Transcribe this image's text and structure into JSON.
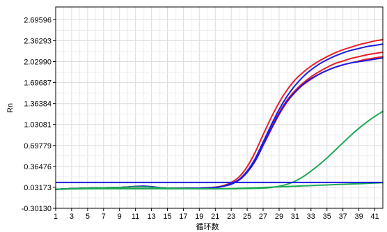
{
  "chart_data": {
    "type": "line",
    "title": "",
    "xlabel": "循环数",
    "ylabel": "Rn",
    "xlim": [
      1,
      42
    ],
    "ylim": [
      -0.3013,
      2.9
    ],
    "grid": true,
    "legend": "none",
    "x_ticks": [
      "1",
      "3",
      "5",
      "7",
      "9",
      "11",
      "13",
      "15",
      "17",
      "19",
      "21",
      "23",
      "25",
      "27",
      "29",
      "31",
      "33",
      "35",
      "37",
      "39",
      "41"
    ],
    "y_ticks": [
      "2.69596",
      "2.36293",
      "2.02990",
      "1.69687",
      "1.36384",
      "1.03081",
      "0.69779",
      "0.36476",
      "0.03173",
      "-0.30130"
    ],
    "x": [
      1,
      5,
      9,
      12,
      15,
      19,
      21,
      22,
      23,
      24,
      25,
      26,
      27,
      28,
      29,
      30,
      31,
      32,
      33,
      34,
      35,
      36,
      37,
      38,
      39,
      40,
      41,
      42
    ],
    "series": [
      {
        "color": "#e8202a",
        "values": [
          0.0,
          0.02,
          0.03,
          0.05,
          0.02,
          0.02,
          0.035,
          0.06,
          0.11,
          0.2,
          0.36,
          0.59,
          0.87,
          1.14,
          1.38,
          1.58,
          1.74,
          1.86,
          1.96,
          2.04,
          2.11,
          2.17,
          2.22,
          2.26,
          2.3,
          2.33,
          2.36,
          2.38
        ]
      },
      {
        "color": "#e8202a",
        "values": [
          0.0,
          0.02,
          0.03,
          0.04,
          0.02,
          0.02,
          0.03,
          0.05,
          0.09,
          0.16,
          0.28,
          0.47,
          0.72,
          0.98,
          1.22,
          1.42,
          1.57,
          1.69,
          1.79,
          1.87,
          1.94,
          2.0,
          2.04,
          2.08,
          2.11,
          2.14,
          2.16,
          2.18
        ]
      },
      {
        "color": "#e8202a",
        "values": [
          0.0,
          0.02,
          0.03,
          0.04,
          0.02,
          0.02,
          0.03,
          0.05,
          0.09,
          0.15,
          0.27,
          0.45,
          0.7,
          0.95,
          1.19,
          1.39,
          1.54,
          1.66,
          1.75,
          1.83,
          1.89,
          1.94,
          1.98,
          2.01,
          2.04,
          2.07,
          2.09,
          2.11
        ]
      },
      {
        "color": "#1c1ce0",
        "values": [
          0.0,
          0.02,
          0.03,
          0.05,
          0.02,
          0.02,
          0.03,
          0.05,
          0.09,
          0.16,
          0.29,
          0.49,
          0.75,
          1.02,
          1.27,
          1.48,
          1.65,
          1.79,
          1.9,
          1.99,
          2.06,
          2.12,
          2.17,
          2.21,
          2.24,
          2.27,
          2.29,
          2.31
        ]
      },
      {
        "color": "#1c1ce0",
        "values": [
          0.0,
          0.02,
          0.03,
          0.04,
          0.02,
          0.02,
          0.03,
          0.05,
          0.08,
          0.15,
          0.27,
          0.45,
          0.7,
          0.96,
          1.2,
          1.4,
          1.55,
          1.67,
          1.76,
          1.83,
          1.89,
          1.94,
          1.98,
          2.01,
          2.03,
          2.05,
          2.07,
          2.09
        ]
      },
      {
        "color": "#1faa55",
        "values": [
          0.0,
          0.02,
          0.03,
          0.04,
          0.02,
          0.01,
          0.01,
          0.01,
          0.01,
          0.012,
          0.014,
          0.016,
          0.02,
          0.03,
          0.05,
          0.08,
          0.13,
          0.2,
          0.29,
          0.39,
          0.5,
          0.62,
          0.74,
          0.86,
          0.97,
          1.07,
          1.16,
          1.24
        ]
      },
      {
        "color": "#1faa55",
        "values": [
          0.0,
          0.01,
          0.01,
          0.01,
          0.01,
          0.01,
          0.01,
          0.01,
          0.012,
          0.015,
          0.02,
          0.025,
          0.03,
          0.035,
          0.04,
          0.045,
          0.05,
          0.055,
          0.06,
          0.065,
          0.07,
          0.075,
          0.08,
          0.085,
          0.09,
          0.095,
          0.1,
          0.105
        ]
      }
    ],
    "threshold": {
      "color": "#1c1ce0",
      "value": 0.11
    }
  }
}
